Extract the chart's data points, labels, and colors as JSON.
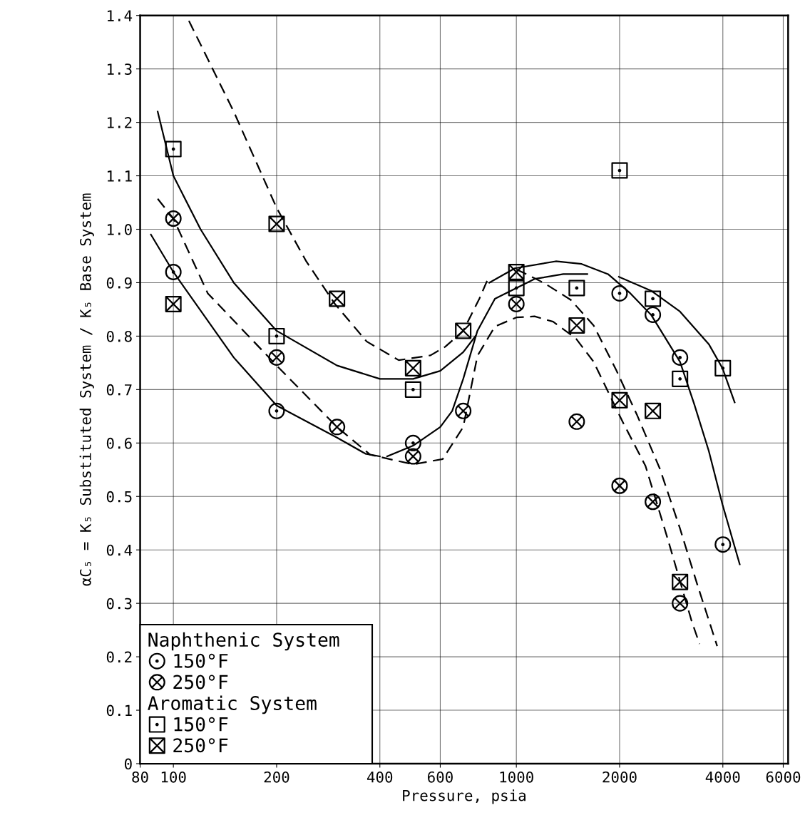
{
  "chart_data": {
    "type": "scatter",
    "xlabel": "Pressure, psia",
    "ylabel": "αC₅ = K₅ Substituted System / K₅ Base System",
    "log": "x",
    "xlim": [
      80,
      6200
    ],
    "ylim": [
      0,
      1.4
    ],
    "xticks": [
      80,
      100,
      200,
      400,
      600,
      1000,
      2000,
      4000,
      6000
    ],
    "yticks": [
      0,
      {
        "value": 0.1,
        "label": "0.1"
      },
      {
        "value": 0.2,
        "label": "0.2"
      },
      {
        "value": 0.3,
        "label": "0.3"
      },
      {
        "value": 0.4,
        "label": "0.4"
      },
      {
        "value": 0.5,
        "label": "0.5"
      },
      {
        "value": 0.6,
        "label": "0.6"
      },
      {
        "value": 0.7,
        "label": "0.7"
      },
      {
        "value": 0.8,
        "label": "0.8"
      },
      {
        "value": 0.9,
        "label": "0.9"
      },
      {
        "value": 1.0,
        "label": "1.0"
      },
      {
        "value": 1.1,
        "label": "1.1"
      },
      {
        "value": 1.2,
        "label": "1.2"
      },
      {
        "value": 1.3,
        "label": "1.3"
      },
      {
        "value": 1.4,
        "label": "1.4"
      }
    ],
    "grid": true,
    "legend": "bottom left",
    "annotations": [
      "Naphthenic System",
      "Aromatic System"
    ],
    "series": [
      {
        "name": "150°F",
        "marker": "circle",
        "color": "#000000",
        "x": [
          100,
          200,
          500,
          2000,
          2500,
          3000,
          4000
        ],
        "values": [
          0.92,
          0.66,
          0.6,
          0.88,
          0.84,
          0.76,
          0.41
        ]
      },
      {
        "name": "250°F",
        "marker": "circle",
        "color": "#000000",
        "x": [
          100,
          200,
          300,
          500,
          700,
          1000,
          1500,
          2000,
          2500,
          3000
        ],
        "values": [
          1.02,
          0.76,
          0.63,
          0.575,
          0.66,
          0.86,
          0.64,
          0.52,
          0.49,
          0.3
        ]
      },
      {
        "name": "150°F",
        "marker": "square",
        "color": "#000000",
        "x": [
          100,
          200,
          500,
          1000,
          1500,
          2000,
          2500,
          3000,
          4000
        ],
        "values": [
          1.15,
          0.8,
          0.7,
          0.89,
          0.89,
          1.11,
          0.87,
          0.72,
          0.74
        ]
      },
      {
        "name": "250°F",
        "marker": "cross",
        "color": "#000000",
        "x": [
          100,
          200,
          300,
          500,
          700,
          1000,
          1500,
          2000,
          2500,
          3000
        ],
        "values": [
          0.86,
          1.01,
          0.87,
          0.74,
          0.81,
          0.92,
          0.82,
          0.68,
          0.66,
          0.34
        ]
      },
      {
        "type": "line",
        "line_style": "solid",
        "color": "#000000",
        "x": [
          90,
          100,
          120,
          150,
          200,
          300,
          400,
          500,
          600,
          700,
          760
        ],
        "values": [
          1.22,
          1.1,
          1.0,
          0.9,
          0.81,
          0.745,
          0.72,
          0.72,
          0.735,
          0.77,
          0.8
        ]
      },
      {
        "type": "line",
        "line_style": "solid",
        "color": "#000000",
        "x": [
          86,
          100,
          150,
          200,
          300,
          363,
          400
        ],
        "values": [
          0.99,
          0.92,
          0.76,
          0.67,
          0.61,
          0.58,
          0.575
        ]
      },
      {
        "type": "line",
        "line_style": "solid",
        "color": "#000000",
        "x": [
          420,
          500,
          600,
          650,
          700,
          770,
          866,
          1000,
          1130,
          1370,
          1610
        ],
        "values": [
          0.575,
          0.595,
          0.63,
          0.66,
          0.72,
          0.81,
          0.87,
          0.89,
          0.907,
          0.916,
          0.916
        ]
      },
      {
        "type": "line",
        "line_style": "solid",
        "color": "#000000",
        "x": [
          834,
          990,
          1303,
          1550,
          1850,
          2150,
          2470,
          3000,
          3300,
          3640,
          3990,
          4480
        ],
        "values": [
          0.9,
          0.927,
          0.94,
          0.935,
          0.916,
          0.88,
          0.84,
          0.752,
          0.673,
          0.585,
          0.485,
          0.373
        ]
      },
      {
        "type": "line",
        "line_style": "solid",
        "color": "#000000",
        "x": [
          1990,
          2470,
          3000,
          3640,
          3990,
          4330
        ],
        "values": [
          0.911,
          0.885,
          0.846,
          0.785,
          0.74,
          0.676
        ]
      },
      {
        "type": "line",
        "line_style": "dashed",
        "color": "#000000",
        "x": [
          111,
          150,
          200,
          244,
          296,
          366,
          454,
          562,
          620,
          700,
          780,
          830
        ],
        "values": [
          1.39,
          1.22,
          1.04,
          0.94,
          0.86,
          0.79,
          0.755,
          0.764,
          0.78,
          0.81,
          0.87,
          0.91
        ]
      },
      {
        "type": "line",
        "line_style": "dashed",
        "color": "#000000",
        "x": [
          1000,
          1200,
          1440,
          1680,
          1960,
          2250,
          2620,
          3000,
          3370,
          3850
        ],
        "values": [
          0.925,
          0.9,
          0.868,
          0.82,
          0.735,
          0.652,
          0.552,
          0.44,
          0.335,
          0.22
        ]
      },
      {
        "type": "line",
        "line_style": "dashed",
        "color": "#000000",
        "x": [
          90,
          100,
          126,
          200,
          300,
          375,
          500,
          610,
          700,
          770,
          866,
          1000,
          1130,
          1280,
          1490,
          1680,
          2040,
          2380,
          2770,
          3240,
          3420
        ],
        "values": [
          1.057,
          1.02,
          0.88,
          0.745,
          0.63,
          0.578,
          0.56,
          0.57,
          0.63,
          0.763,
          0.818,
          0.835,
          0.837,
          0.827,
          0.796,
          0.752,
          0.64,
          0.557,
          0.418,
          0.268,
          0.224
        ]
      }
    ]
  }
}
